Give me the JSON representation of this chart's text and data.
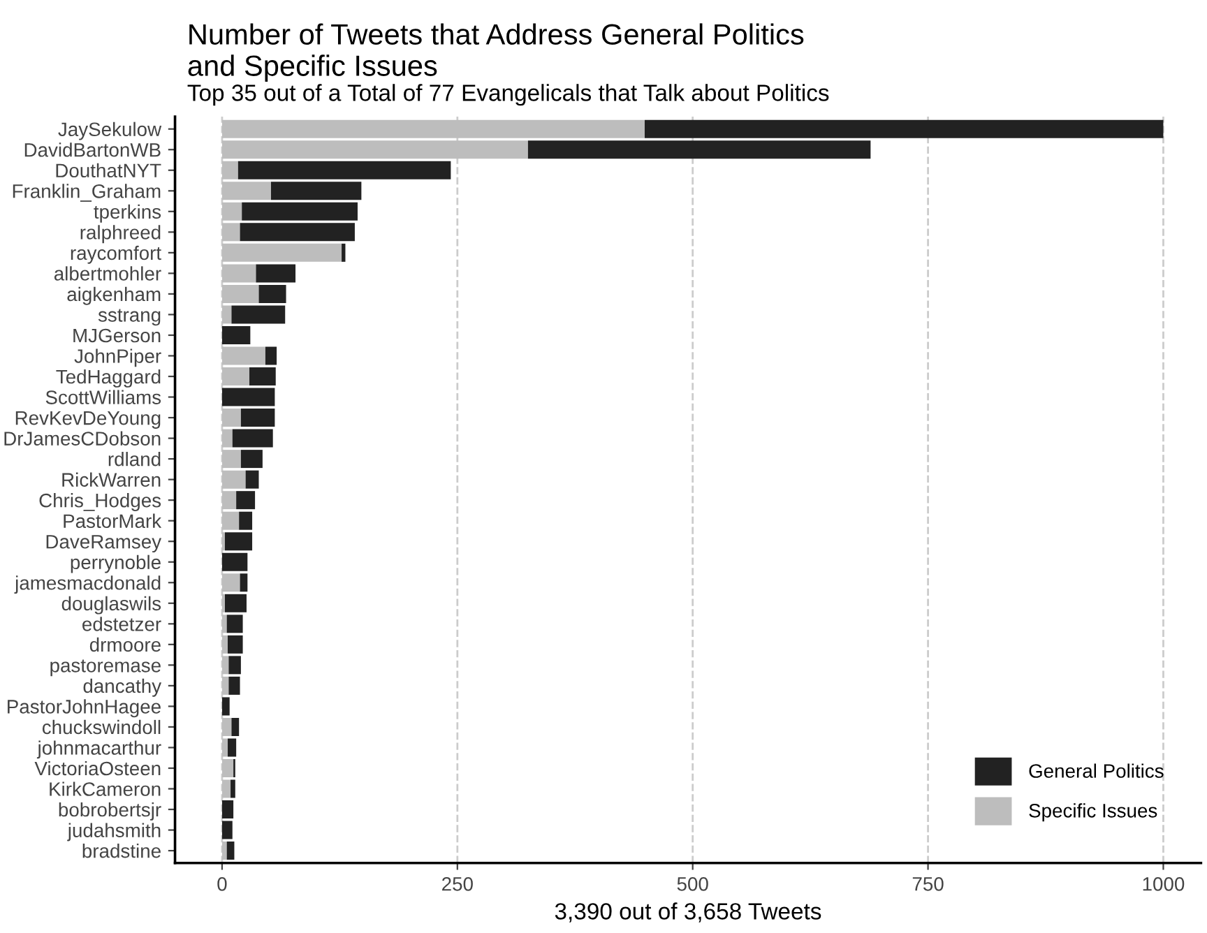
{
  "chart_data": {
    "type": "bar",
    "orientation": "horizontal",
    "stacked": true,
    "title": "Number of Tweets that Address General Politics\nand Specific Issues",
    "subtitle": "Top 35 out of a Total of 77 Evangelicals that Talk about Politics",
    "xlabel": "3,390 out of 3,658 Tweets",
    "categories": [
      "JaySekulow",
      "DavidBartonWB",
      "DouthatNYT",
      "Franklin_Graham",
      "tperkins",
      "ralphreed",
      "raycomfort",
      "albertmohler",
      "aigkenham",
      "sstrang",
      "MJGerson",
      "JohnPiper",
      "TedHaggard",
      "ScottWilliams",
      "RevKevDeYoung",
      "DrJamesCDobson",
      "rdland",
      "RickWarren",
      "Chris_Hodges",
      "PastorMark",
      "DaveRamsey",
      "perrynoble",
      "jamesmacdonald",
      "douglaswils",
      "edstetzer",
      "drmoore",
      "pastoremase",
      "dancathy",
      "PastorJohnHagee",
      "chuckswindoll",
      "johnmacarthur",
      "VictoriaOsteen",
      "KirkCameron",
      "bobrobertsjr",
      "judahsmith",
      "bradstine"
    ],
    "series": [
      {
        "name": "Specific Issues",
        "color": "#bdbdbd",
        "values": [
          449,
          325,
          17,
          52,
          21,
          19,
          127,
          36,
          39,
          10,
          0,
          46,
          29,
          null,
          20,
          11,
          20,
          25,
          15,
          18,
          3,
          null,
          19,
          3,
          5,
          6,
          7,
          7,
          0,
          10,
          6,
          12,
          9,
          null,
          null,
          5
        ]
      },
      {
        "name": "General Politics",
        "color": "#222222",
        "values": [
          551,
          364,
          226,
          96,
          123,
          122,
          4,
          42,
          29,
          57,
          30,
          12,
          28,
          56,
          36,
          43,
          23,
          14,
          20,
          14,
          29,
          27,
          8,
          23,
          17,
          16,
          13,
          12,
          8,
          8,
          9,
          2,
          5,
          12,
          11,
          8
        ]
      }
    ],
    "xlim": [
      -50,
      1040
    ],
    "xticks": [
      0,
      250,
      500,
      750,
      1000
    ],
    "grid": "x",
    "line_style": "dashed",
    "legend": "bottom right"
  }
}
